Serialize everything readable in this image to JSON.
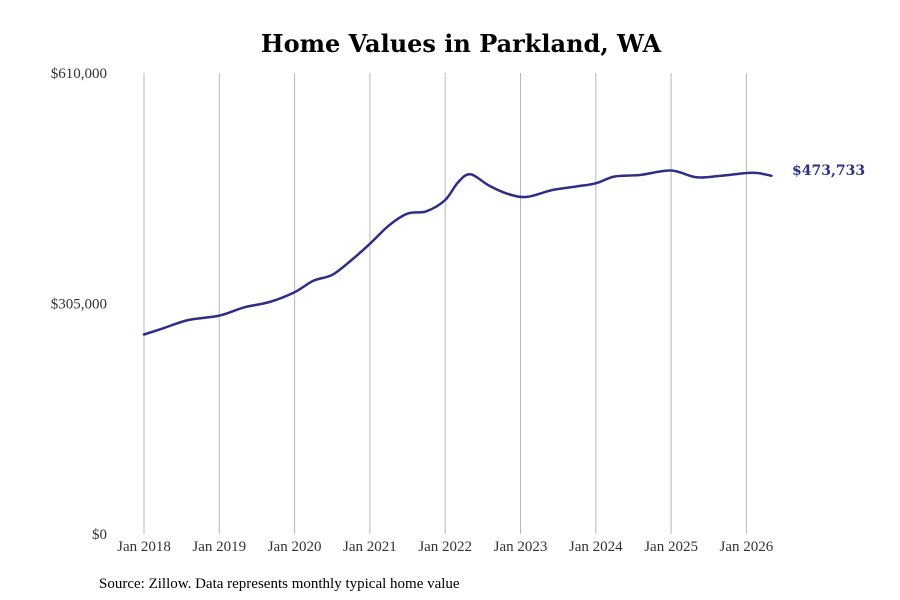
{
  "chart_data": {
    "type": "line",
    "title": "Home Values in Parkland, WA",
    "source": "Source: Zillow. Data represents monthly typical home value",
    "xlabel": "",
    "ylabel": "",
    "ylim": [
      0,
      610000
    ],
    "y_ticks": [
      {
        "value": 0,
        "label": "$0"
      },
      {
        "value": 305000,
        "label": "$305,000"
      },
      {
        "value": 610000,
        "label": "$610,000"
      }
    ],
    "x_ticks": [
      {
        "date": "2018-01",
        "label": "Jan 2018"
      },
      {
        "date": "2019-01",
        "label": "Jan 2019"
      },
      {
        "date": "2020-01",
        "label": "Jan 2020"
      },
      {
        "date": "2021-01",
        "label": "Jan 2021"
      },
      {
        "date": "2022-01",
        "label": "Jan 2022"
      },
      {
        "date": "2023-01",
        "label": "Jan 2023"
      },
      {
        "date": "2024-01",
        "label": "Jan 2024"
      },
      {
        "date": "2025-01",
        "label": "Jan 2025"
      },
      {
        "date": "2026-01",
        "label": "Jan 2026"
      }
    ],
    "grid": {
      "vertical": true,
      "horizontal": false
    },
    "line_color": "#2e2e87",
    "end_label": "$473,733",
    "series": [
      {
        "points": [
          {
            "x": "2018-01",
            "y": 264000
          },
          {
            "x": "2018-04",
            "y": 272000
          },
          {
            "x": "2018-08",
            "y": 283000
          },
          {
            "x": "2019-01",
            "y": 289000
          },
          {
            "x": "2019-05",
            "y": 300000
          },
          {
            "x": "2019-09",
            "y": 307000
          },
          {
            "x": "2020-01",
            "y": 320000
          },
          {
            "x": "2020-04",
            "y": 335000
          },
          {
            "x": "2020-07",
            "y": 343000
          },
          {
            "x": "2020-10",
            "y": 362000
          },
          {
            "x": "2021-01",
            "y": 384000
          },
          {
            "x": "2021-04",
            "y": 408000
          },
          {
            "x": "2021-07",
            "y": 424000
          },
          {
            "x": "2021-10",
            "y": 427000
          },
          {
            "x": "2022-01",
            "y": 442000
          },
          {
            "x": "2022-03",
            "y": 465000
          },
          {
            "x": "2022-05",
            "y": 476000
          },
          {
            "x": "2022-08",
            "y": 461000
          },
          {
            "x": "2022-11",
            "y": 450000
          },
          {
            "x": "2023-02",
            "y": 446000
          },
          {
            "x": "2023-06",
            "y": 455000
          },
          {
            "x": "2023-10",
            "y": 460000
          },
          {
            "x": "2024-01",
            "y": 464000
          },
          {
            "x": "2024-04",
            "y": 473000
          },
          {
            "x": "2024-08",
            "y": 475000
          },
          {
            "x": "2025-01",
            "y": 481000
          },
          {
            "x": "2025-05",
            "y": 472000
          },
          {
            "x": "2025-09",
            "y": 474000
          },
          {
            "x": "2026-02",
            "y": 478000
          },
          {
            "x": "2026-05",
            "y": 474000
          }
        ]
      }
    ]
  }
}
